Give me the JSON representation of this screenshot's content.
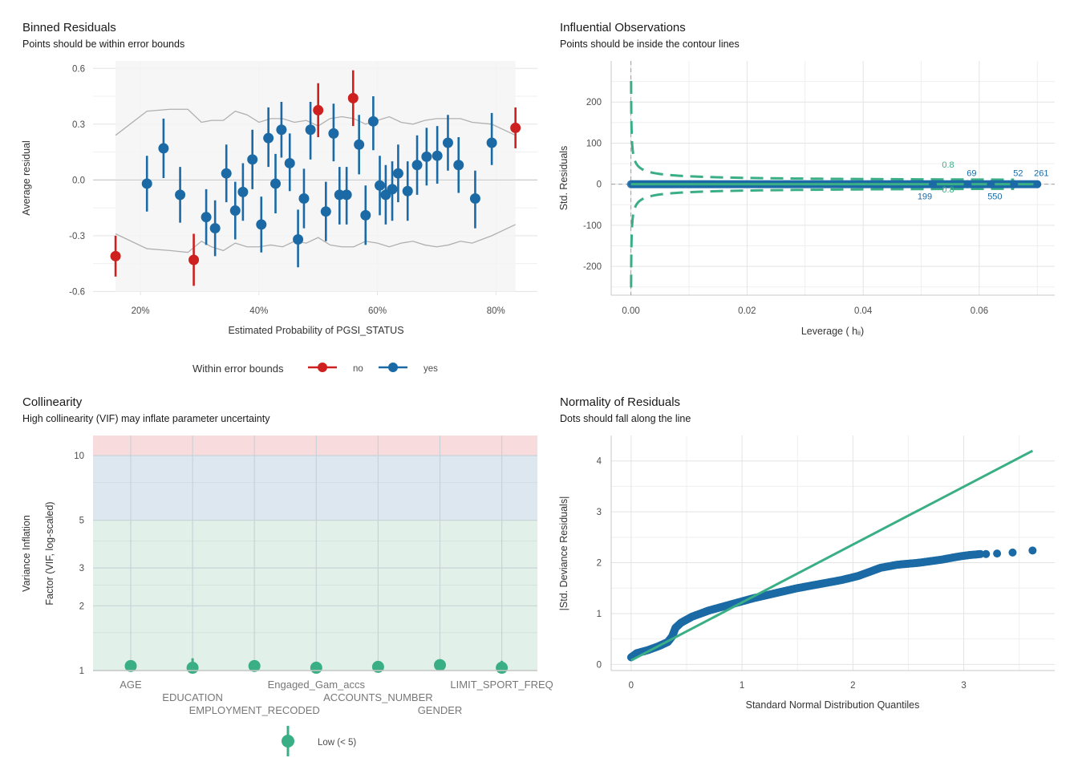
{
  "chart_data": [
    {
      "type": "scatter",
      "title": "Binned Residuals",
      "subtitle": "Points should be within error bounds",
      "xlabel": "Estimated Probability of PGSI_STATUS",
      "ylabel": "Average residual",
      "x_ticks": [
        "20%",
        "40%",
        "60%",
        "80%"
      ],
      "x_tick_values": [
        20,
        40,
        60,
        80
      ],
      "y_ticks": [
        "0.6",
        "0.3",
        "0.0",
        "-0.3",
        "-0.6"
      ],
      "y_tick_values": [
        0.6,
        0.3,
        0,
        -0.3,
        -0.6
      ],
      "xlim": [
        12,
        87
      ],
      "ylim": [
        -0.62,
        0.64
      ],
      "legend": {
        "title": "Within error bounds",
        "entries": [
          "no",
          "yes"
        ],
        "placement": "bottom"
      },
      "colors": {
        "no": "#cd201f",
        "yes": "#1b6aa5",
        "bounds": "#b0b0b0",
        "band": "#f5f5f5"
      },
      "points": [
        {
          "x": 15.8,
          "y": -0.41,
          "lo": -0.52,
          "hi": -0.3,
          "within": "no"
        },
        {
          "x": 21.1,
          "y": -0.02,
          "lo": -0.17,
          "hi": 0.13,
          "within": "yes"
        },
        {
          "x": 23.9,
          "y": 0.17,
          "lo": 0.01,
          "hi": 0.33,
          "within": "yes"
        },
        {
          "x": 26.7,
          "y": -0.08,
          "lo": -0.23,
          "hi": 0.07,
          "within": "yes"
        },
        {
          "x": 29.0,
          "y": -0.43,
          "lo": -0.57,
          "hi": -0.29,
          "within": "no"
        },
        {
          "x": 31.1,
          "y": -0.2,
          "lo": -0.35,
          "hi": -0.05,
          "within": "yes"
        },
        {
          "x": 32.6,
          "y": -0.26,
          "lo": -0.41,
          "hi": -0.11,
          "within": "yes"
        },
        {
          "x": 34.5,
          "y": 0.035,
          "lo": -0.12,
          "hi": 0.19,
          "within": "yes"
        },
        {
          "x": 36.0,
          "y": -0.165,
          "lo": -0.32,
          "hi": -0.01,
          "within": "yes"
        },
        {
          "x": 37.3,
          "y": -0.065,
          "lo": -0.22,
          "hi": 0.09,
          "within": "yes"
        },
        {
          "x": 38.9,
          "y": 0.11,
          "lo": -0.05,
          "hi": 0.27,
          "within": "yes"
        },
        {
          "x": 40.4,
          "y": -0.24,
          "lo": -0.39,
          "hi": -0.09,
          "within": "yes"
        },
        {
          "x": 41.6,
          "y": 0.225,
          "lo": 0.07,
          "hi": 0.39,
          "within": "yes"
        },
        {
          "x": 42.8,
          "y": -0.02,
          "lo": -0.18,
          "hi": 0.14,
          "within": "yes"
        },
        {
          "x": 43.8,
          "y": 0.27,
          "lo": 0.12,
          "hi": 0.42,
          "within": "yes"
        },
        {
          "x": 45.2,
          "y": 0.09,
          "lo": -0.06,
          "hi": 0.25,
          "within": "yes"
        },
        {
          "x": 46.6,
          "y": -0.32,
          "lo": -0.47,
          "hi": -0.16,
          "within": "yes"
        },
        {
          "x": 47.6,
          "y": -0.1,
          "lo": -0.26,
          "hi": 0.06,
          "within": "yes"
        },
        {
          "x": 48.7,
          "y": 0.27,
          "lo": 0.11,
          "hi": 0.42,
          "within": "yes"
        },
        {
          "x": 50.0,
          "y": 0.375,
          "lo": 0.23,
          "hi": 0.52,
          "within": "no"
        },
        {
          "x": 51.3,
          "y": -0.17,
          "lo": -0.33,
          "hi": -0.01,
          "within": "yes"
        },
        {
          "x": 52.6,
          "y": 0.25,
          "lo": 0.1,
          "hi": 0.41,
          "within": "yes"
        },
        {
          "x": 53.6,
          "y": -0.08,
          "lo": -0.24,
          "hi": 0.07,
          "within": "yes"
        },
        {
          "x": 54.8,
          "y": -0.08,
          "lo": -0.24,
          "hi": 0.07,
          "within": "yes"
        },
        {
          "x": 55.9,
          "y": 0.44,
          "lo": 0.29,
          "hi": 0.59,
          "within": "no"
        },
        {
          "x": 56.9,
          "y": 0.19,
          "lo": 0.03,
          "hi": 0.35,
          "within": "yes"
        },
        {
          "x": 58.0,
          "y": -0.19,
          "lo": -0.35,
          "hi": -0.03,
          "within": "yes"
        },
        {
          "x": 59.3,
          "y": 0.315,
          "lo": 0.16,
          "hi": 0.45,
          "within": "yes"
        },
        {
          "x": 60.4,
          "y": -0.03,
          "lo": -0.19,
          "hi": 0.13,
          "within": "yes"
        },
        {
          "x": 61.4,
          "y": -0.08,
          "lo": -0.24,
          "hi": 0.08,
          "within": "yes"
        },
        {
          "x": 62.5,
          "y": -0.05,
          "lo": -0.22,
          "hi": 0.1,
          "within": "yes"
        },
        {
          "x": 63.5,
          "y": 0.035,
          "lo": -0.12,
          "hi": 0.19,
          "within": "yes"
        },
        {
          "x": 65.1,
          "y": -0.06,
          "lo": -0.22,
          "hi": 0.1,
          "within": "yes"
        },
        {
          "x": 66.7,
          "y": 0.08,
          "lo": -0.08,
          "hi": 0.24,
          "within": "yes"
        },
        {
          "x": 68.3,
          "y": 0.125,
          "lo": -0.03,
          "hi": 0.28,
          "within": "yes"
        },
        {
          "x": 70.1,
          "y": 0.13,
          "lo": -0.02,
          "hi": 0.29,
          "within": "yes"
        },
        {
          "x": 71.9,
          "y": 0.2,
          "lo": 0.05,
          "hi": 0.35,
          "within": "yes"
        },
        {
          "x": 73.7,
          "y": 0.08,
          "lo": -0.07,
          "hi": 0.23,
          "within": "yes"
        },
        {
          "x": 76.5,
          "y": -0.1,
          "lo": -0.26,
          "hi": 0.05,
          "within": "yes"
        },
        {
          "x": 79.3,
          "y": 0.2,
          "lo": 0.08,
          "hi": 0.36,
          "within": "yes"
        },
        {
          "x": 83.3,
          "y": 0.28,
          "lo": 0.17,
          "hi": 0.39,
          "within": "no"
        }
      ],
      "upper_bound": [
        [
          15.8,
          0.24
        ],
        [
          21.1,
          0.37
        ],
        [
          25,
          0.38
        ],
        [
          28,
          0.38
        ],
        [
          30.3,
          0.31
        ],
        [
          32,
          0.32
        ],
        [
          34,
          0.32
        ],
        [
          36,
          0.37
        ],
        [
          38,
          0.35
        ],
        [
          40,
          0.31
        ],
        [
          42,
          0.33
        ],
        [
          44,
          0.33
        ],
        [
          46,
          0.31
        ],
        [
          48,
          0.32
        ],
        [
          50,
          0.29
        ],
        [
          52,
          0.33
        ],
        [
          54,
          0.34
        ],
        [
          56,
          0.33
        ],
        [
          58,
          0.3
        ],
        [
          60,
          0.32
        ],
        [
          62,
          0.34
        ],
        [
          64,
          0.31
        ],
        [
          66,
          0.3
        ],
        [
          68,
          0.32
        ],
        [
          70,
          0.33
        ],
        [
          72,
          0.33
        ],
        [
          74,
          0.33
        ],
        [
          76,
          0.31
        ],
        [
          79.3,
          0.3
        ],
        [
          83.3,
          0.24
        ]
      ],
      "lower_bound": [
        [
          15.8,
          -0.29
        ],
        [
          21.1,
          -0.37
        ],
        [
          25,
          -0.38
        ],
        [
          28,
          -0.39
        ],
        [
          30.3,
          -0.33
        ],
        [
          32,
          -0.36
        ],
        [
          34,
          -0.38
        ],
        [
          36,
          -0.34
        ],
        [
          38,
          -0.36
        ],
        [
          40,
          -0.36
        ],
        [
          42,
          -0.35
        ],
        [
          44,
          -0.36
        ],
        [
          46,
          -0.33
        ],
        [
          48,
          -0.34
        ],
        [
          50,
          -0.31
        ],
        [
          52,
          -0.35
        ],
        [
          54,
          -0.36
        ],
        [
          56,
          -0.36
        ],
        [
          58,
          -0.33
        ],
        [
          60,
          -0.34
        ],
        [
          62,
          -0.36
        ],
        [
          64,
          -0.34
        ],
        [
          66,
          -0.33
        ],
        [
          68,
          -0.35
        ],
        [
          70,
          -0.36
        ],
        [
          72,
          -0.35
        ],
        [
          74,
          -0.33
        ],
        [
          76,
          -0.34
        ],
        [
          79.3,
          -0.3
        ],
        [
          83.3,
          -0.24
        ]
      ]
    },
    {
      "type": "scatter",
      "title": "Influential Observations",
      "subtitle": "Points should be inside the contour lines",
      "xlabel": "Leverage ( hᵢᵢ)",
      "ylabel": "Std. Residuals",
      "x_ticks": [
        "0.00",
        "0.02",
        "0.04",
        "0.06"
      ],
      "x_tick_values": [
        0,
        0.02,
        0.04,
        0.06
      ],
      "y_ticks": [
        "200",
        "100",
        "0",
        "-100",
        "-200"
      ],
      "y_tick_values": [
        200,
        100,
        0,
        -100,
        -200
      ],
      "xlim": [
        -0.0034,
        0.073
      ],
      "ylim": [
        -270,
        300
      ],
      "colors": {
        "points": "#1b6aa5",
        "contour": "#3aaf85",
        "reference": "#9e9e9e"
      },
      "contour_label": "0.8",
      "points_leverage": [
        0,
        0.0005,
        0.001,
        0.0015,
        0.002,
        0.0025,
        0.003,
        0.0035,
        0.004,
        0.0045,
        0.005,
        0.0055,
        0.006,
        0.0065,
        0.007,
        0.0075,
        0.008,
        0.0085,
        0.009,
        0.0095,
        0.01,
        0.011,
        0.012,
        0.013,
        0.014,
        0.016,
        0.02,
        0.022,
        0.024,
        0.026,
        0.027,
        0.028,
        0.03,
        0.032,
        0.034,
        0.038,
        0.044,
        0.052,
        0.058,
        0.062,
        0.066,
        0.07
      ],
      "labeled_points": [
        {
          "label": "199",
          "x": 0.052,
          "y": 0
        },
        {
          "label": "69",
          "x": 0.058,
          "y": 0
        },
        {
          "label": "550",
          "x": 0.062,
          "y": 0
        },
        {
          "label": "52",
          "x": 0.066,
          "y": 0
        },
        {
          "label": "261",
          "x": 0.07,
          "y": 0
        }
      ]
    },
    {
      "type": "scatter",
      "title": "Collinearity",
      "subtitle": "High collinearity (VIF) may inflate parameter uncertainty",
      "xlabel": "",
      "ylabel": "Variance Inflation\nFactor (VIF, log-scaled)",
      "ylabel_lines": [
        "Variance Inflation",
        "Factor (VIF, log-scaled)"
      ],
      "y_scale": "log",
      "y_ticks": [
        "10",
        "5",
        "3",
        "2",
        "1"
      ],
      "y_tick_values": [
        10,
        5,
        3,
        2,
        1
      ],
      "ylim": [
        1,
        12.4
      ],
      "categories": [
        "AGE",
        "EDUCATION",
        "EMPLOYMENT_RECODED",
        "Engaged_Gam_accs",
        "ACCOUNTS_NUMBER",
        "GENDER",
        "LIMIT_SPORT_FREQ"
      ],
      "values": [
        1.05,
        1.03,
        1.05,
        1.03,
        1.04,
        1.06,
        1.03
      ],
      "ci_high": [
        1.07,
        1.14,
        1.07,
        1.1,
        1.1,
        1.06,
        1.11
      ],
      "bands": [
        {
          "range": [
            1,
            5
          ],
          "color": "#e1f1ea"
        },
        {
          "range": [
            5,
            10
          ],
          "color": "#dde7ef"
        },
        {
          "range": [
            10,
            12.4
          ],
          "color": "#f8dbdd"
        }
      ],
      "legend": {
        "entries": [
          "Low (< 5)"
        ],
        "placement": "bottom"
      },
      "colors": {
        "low": "#3aaf85"
      }
    },
    {
      "type": "scatter",
      "title": "Normality of Residuals",
      "subtitle": "Dots should fall along the line",
      "xlabel": "Standard Normal Distribution Quantiles",
      "ylabel": "|Std. Deviance Residuals|",
      "x_ticks": [
        "0",
        "1",
        "2",
        "3"
      ],
      "x_tick_values": [
        0,
        1,
        2,
        3
      ],
      "y_ticks": [
        "4",
        "3",
        "2",
        "1",
        "0"
      ],
      "y_tick_values": [
        4,
        3,
        2,
        1,
        0
      ],
      "xlim": [
        -0.18,
        3.82
      ],
      "ylim": [
        -0.12,
        4.5
      ],
      "colors": {
        "points": "#1b6aa5",
        "line": "#3aaf85"
      },
      "reference_line": [
        [
          0,
          0.08
        ],
        [
          3.62,
          4.2
        ]
      ],
      "points": [
        [
          0,
          0.14
        ],
        [
          0.05,
          0.22
        ],
        [
          0.15,
          0.28
        ],
        [
          0.25,
          0.36
        ],
        [
          0.33,
          0.44
        ],
        [
          0.37,
          0.55
        ],
        [
          0.4,
          0.72
        ],
        [
          0.45,
          0.82
        ],
        [
          0.55,
          0.94
        ],
        [
          0.7,
          1.06
        ],
        [
          0.9,
          1.18
        ],
        [
          1.1,
          1.3
        ],
        [
          1.3,
          1.4
        ],
        [
          1.5,
          1.5
        ],
        [
          1.7,
          1.58
        ],
        [
          1.9,
          1.66
        ],
        [
          2.05,
          1.74
        ],
        [
          2.15,
          1.82
        ],
        [
          2.25,
          1.9
        ],
        [
          2.4,
          1.96
        ],
        [
          2.6,
          2.0
        ],
        [
          2.8,
          2.06
        ],
        [
          2.95,
          2.12
        ],
        [
          3.05,
          2.15
        ],
        [
          3.15,
          2.17
        ],
        [
          3.2,
          2.17
        ],
        [
          3.3,
          2.18
        ],
        [
          3.44,
          2.2
        ],
        [
          3.62,
          2.24
        ]
      ]
    }
  ]
}
